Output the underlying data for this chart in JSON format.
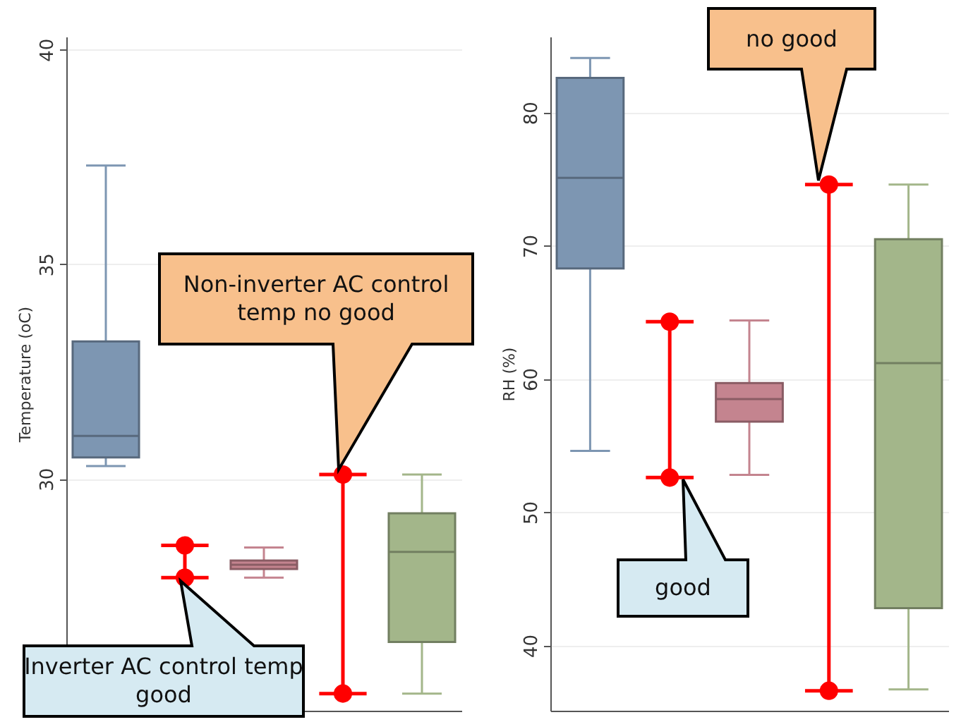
{
  "chart_data": [
    {
      "type": "box",
      "ylabel": "Temperature (oC)",
      "categories": [
        null,
        null,
        null,
        null,
        null
      ],
      "colors": [
        "#7d96b2",
        null,
        "#c4848f",
        null,
        "#a3b68a"
      ],
      "boxes": [
        {
          "low": 30.3,
          "q1": 30.5,
          "median": 31.0,
          "q3": 33.2,
          "high": 37.3
        },
        null,
        {
          "low": 27.7,
          "q1": 27.9,
          "median": 28.0,
          "q3": 28.1,
          "high": 28.4
        },
        null,
        {
          "low": 25.0,
          "q1": 26.2,
          "median": 28.3,
          "q3": 29.2,
          "high": 30.1
        }
      ],
      "series": [
        {
          "type": "scatter",
          "color": "#ff0000",
          "marker": "circle",
          "values": [
            null,
            28.45,
            null,
            30.1,
            null
          ]
        },
        {
          "type": "scatter",
          "color": "#ff0000",
          "marker": "circle",
          "values": [
            null,
            27.7,
            null,
            25.0,
            null
          ]
        }
      ],
      "ylim": [
        24.6,
        40.3
      ],
      "yticks": [
        30,
        35,
        40
      ],
      "grid": "y",
      "tick_labels": "y",
      "annotations": [
        "Non-inverter AC control temp no good",
        "Inverter AC control temp good"
      ]
    },
    {
      "type": "box",
      "ylabel": "RH (%)",
      "categories": [
        null,
        null,
        null,
        null,
        null
      ],
      "colors": [
        "#7d96b2",
        null,
        "#c4848f",
        null,
        "#a3b68a"
      ],
      "boxes": [
        {
          "low": 54.6,
          "q1": 68.3,
          "median": 75.1,
          "q3": 82.6,
          "high": 84.1
        },
        null,
        {
          "low": 52.8,
          "q1": 56.8,
          "median": 58.5,
          "q3": 59.7,
          "high": 64.4
        },
        null,
        {
          "low": 36.7,
          "q1": 42.8,
          "median": 61.2,
          "q3": 70.5,
          "high": 74.6
        }
      ],
      "series": [
        {
          "type": "scatter",
          "color": "#ff0000",
          "marker": "circle",
          "values": [
            null,
            64.3,
            null,
            74.6,
            null
          ]
        },
        {
          "type": "scatter",
          "color": "#ff0000",
          "marker": "circle",
          "values": [
            null,
            52.6,
            null,
            36.6,
            null
          ]
        }
      ],
      "ylim": [
        35.1,
        85.7
      ],
      "yticks": [
        40,
        50,
        60,
        70,
        80
      ],
      "grid": "y",
      "tick_labels": "y",
      "annotations": [
        "no good",
        "good"
      ]
    }
  ]
}
